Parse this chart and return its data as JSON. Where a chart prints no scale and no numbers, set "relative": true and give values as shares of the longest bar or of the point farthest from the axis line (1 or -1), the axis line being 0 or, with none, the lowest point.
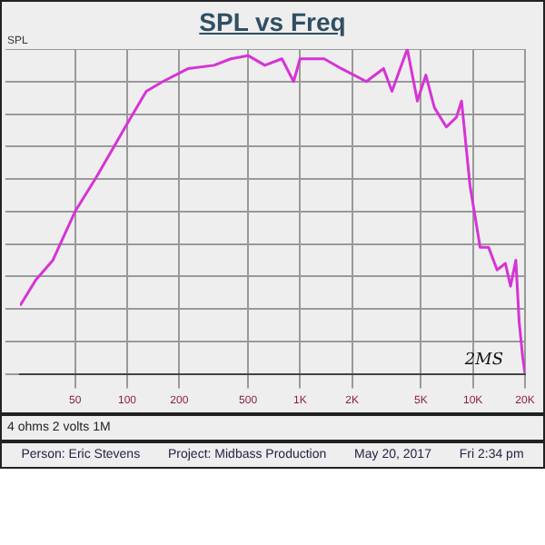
{
  "chart_data": {
    "type": "line",
    "title": "SPL vs Freq",
    "ylabel": "SPL",
    "log": "x",
    "relative": true,
    "grid": true,
    "legend": false,
    "marker": "none",
    "line_style": "solid",
    "xlim": [
      24,
      20000
    ],
    "xticks": [
      50,
      100,
      200,
      500,
      {
        "value": 1000,
        "label": "1K"
      },
      {
        "value": 2000,
        "label": "2K"
      },
      {
        "value": 5000,
        "label": "5K"
      },
      {
        "value": 10000,
        "label": "10K"
      },
      {
        "value": 20000,
        "label": "20K"
      }
    ],
    "annotations": [
      "2MS",
      "4 ohms 2 volts 1M",
      "Person: Eric Stevens",
      "Project: Midbass Production",
      "May 20, 2017",
      "Fri 2:34 pm"
    ],
    "series": [
      {
        "color": "#d633d6",
        "x": [
          24,
          29.7,
          37.2,
          50,
          65.4,
          82,
          100,
          129,
          161,
          226,
          318,
          398,
          500,
          626,
          785,
          918,
          1000,
          1380,
          1730,
          2420,
          3040,
          3400,
          4170,
          4770,
          5340,
          5980,
          7010,
          8020,
          8590,
          9610,
          11000,
          12300,
          13800,
          15400,
          16500,
          17700,
          18500,
          19400,
          20000
        ],
        "values": [
          0.21,
          0.29,
          0.35,
          0.5,
          0.6,
          0.69,
          0.77,
          0.87,
          0.9,
          0.94,
          0.95,
          0.97,
          0.98,
          0.95,
          0.97,
          0.9,
          0.97,
          0.97,
          0.94,
          0.9,
          0.94,
          0.87,
          1.0,
          0.84,
          0.92,
          0.82,
          0.76,
          0.79,
          0.84,
          0.58,
          0.39,
          0.39,
          0.32,
          0.34,
          0.27,
          0.35,
          0.16,
          0.05,
          0
        ]
      }
    ]
  }
}
